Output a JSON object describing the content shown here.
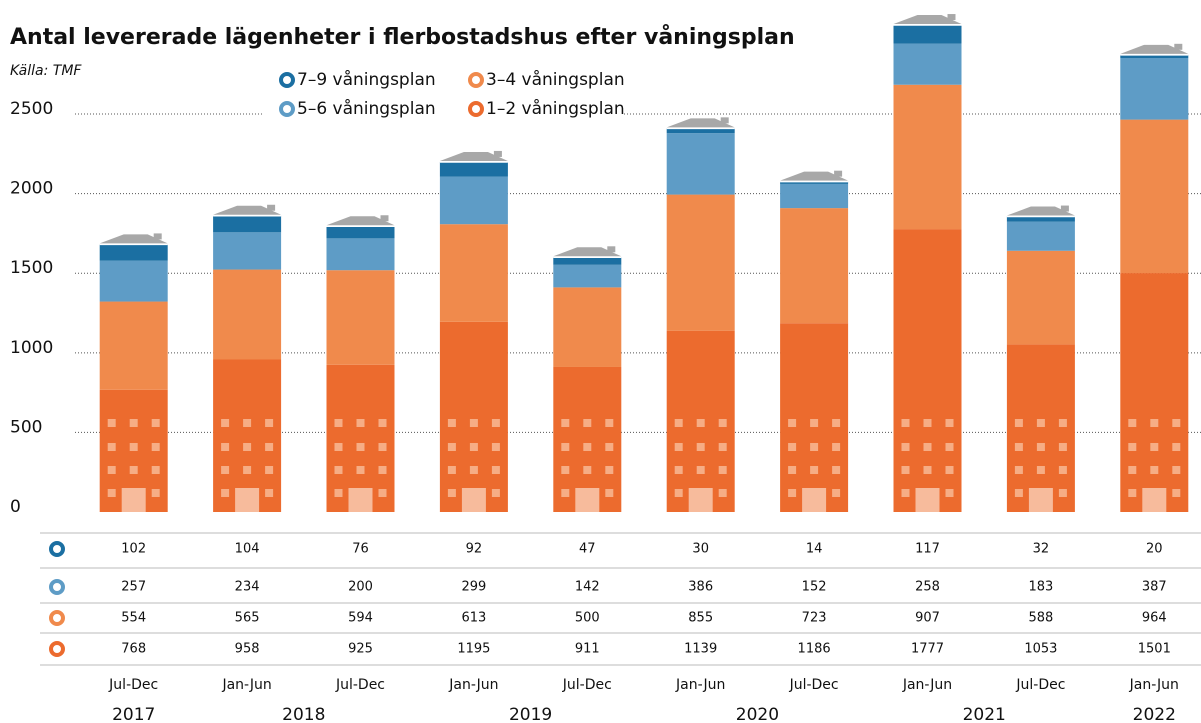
{
  "chart_data": {
    "type": "bar",
    "stacked": true,
    "title": "Antal levererade lägenheter i flerbostadshus efter våningsplan",
    "subtitle": "Källa: TMF",
    "categories": [
      "Jul-Dec",
      "Jan-Jun",
      "Jul-Dec",
      "Jan-Jun",
      "Jul-Dec",
      "Jan-Jun",
      "Jul-Dec",
      "Jan-Jun",
      "Jul-Dec",
      "Jan-Jun"
    ],
    "years": [
      "2017",
      "2018",
      "2019",
      "2020",
      "2021",
      "2022"
    ],
    "series": [
      {
        "name": "1–2 våningsplan",
        "color": "#ec6b2e",
        "values": [
          768,
          958,
          925,
          1195,
          911,
          1139,
          1186,
          1777,
          1053,
          1501
        ]
      },
      {
        "name": "3–4 våningsplan",
        "color": "#f08a4c",
        "values": [
          554,
          565,
          594,
          613,
          500,
          855,
          723,
          907,
          588,
          964
        ]
      },
      {
        "name": "5–6 våningsplan",
        "color": "#5e9cc6",
        "values": [
          257,
          234,
          200,
          299,
          142,
          386,
          152,
          258,
          183,
          387
        ]
      },
      {
        "name": "7–9 våningsplan",
        "color": "#1b6fa2",
        "values": [
          102,
          104,
          76,
          92,
          47,
          30,
          14,
          117,
          32,
          20
        ]
      }
    ],
    "ylim": [
      0,
      3200
    ],
    "yticks": [
      0,
      500,
      1000,
      1500,
      2000,
      2500
    ],
    "grid": true
  }
}
